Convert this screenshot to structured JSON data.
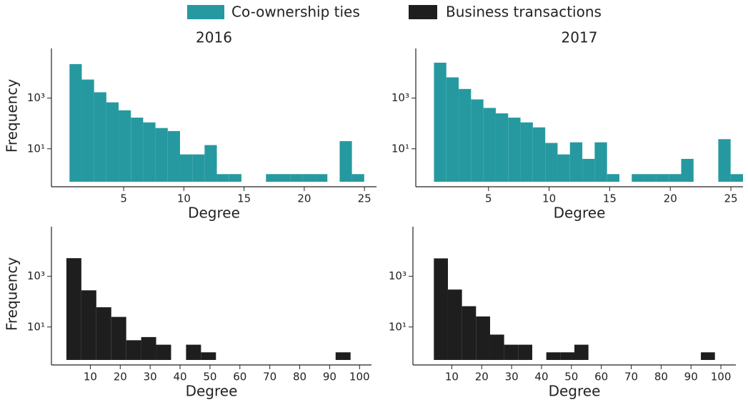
{
  "chart_data": [
    {
      "type": "histogram",
      "title": "2016",
      "xlabel": "Degree",
      "ylabel": "Frequency",
      "yscale": "log",
      "bins": [
        0.5,
        1.52,
        2.54,
        3.56,
        4.58,
        5.6,
        6.62,
        7.64,
        8.66,
        9.68,
        10.7,
        11.72,
        12.74,
        13.76,
        14.78,
        15.8,
        16.82,
        17.84,
        18.86,
        19.88,
        20.9,
        21.92,
        22.94,
        23.96,
        24.98
      ],
      "series": [
        {
          "name": "Co-ownership ties",
          "color": "#2699a0",
          "values": [
            22000,
            5400,
            1700,
            680,
            330,
            170,
            110,
            66,
            50,
            6,
            6,
            14,
            1,
            1,
            0,
            0,
            1,
            1,
            1,
            1,
            1,
            0,
            20,
            1
          ]
        }
      ],
      "xlim": [
        -1,
        26
      ],
      "xticks": [
        5,
        10,
        15,
        20,
        25
      ],
      "ylim": [
        0.5,
        80000
      ],
      "yticks": [
        {
          "value": 10,
          "label": "10¹"
        },
        {
          "value": 1000,
          "label": "10³"
        }
      ]
    },
    {
      "type": "histogram",
      "title": "2017",
      "xlabel": "Degree",
      "yscale": "log",
      "bins": [
        0.5,
        1.52,
        2.54,
        3.56,
        4.58,
        5.6,
        6.62,
        7.64,
        8.66,
        9.68,
        10.7,
        11.72,
        12.74,
        13.76,
        14.78,
        15.8,
        16.82,
        17.84,
        18.86,
        19.88,
        20.9,
        21.92,
        22.94,
        23.96,
        24.98,
        26.0
      ],
      "series": [
        {
          "name": "Co-ownership ties",
          "color": "#2699a0",
          "values": [
            25000,
            6600,
            2300,
            890,
            410,
            250,
            170,
            110,
            70,
            17,
            6,
            18,
            4,
            18,
            1,
            0,
            1,
            1,
            1,
            1,
            4,
            0,
            0,
            24,
            1
          ]
        }
      ],
      "xlim": [
        -1,
        26
      ],
      "xticks": [
        5,
        10,
        15,
        20,
        25
      ],
      "ylim": [
        0.5,
        80000
      ],
      "yticks": [
        {
          "value": 10,
          "label": "10¹"
        },
        {
          "value": 1000,
          "label": "10³"
        }
      ]
    },
    {
      "type": "histogram",
      "xlabel": "Degree",
      "ylabel": "Frequency",
      "yscale": "log",
      "bins": [
        2,
        7,
        12,
        17,
        22,
        27,
        32,
        37,
        42,
        47,
        52,
        57,
        62,
        67,
        72,
        77,
        82,
        87,
        92,
        97
      ],
      "series": [
        {
          "name": "Business transactions",
          "color": "#1e1e1e",
          "values": [
            5200,
            280,
            60,
            25,
            3,
            4,
            2,
            0,
            2,
            1,
            0,
            0,
            0,
            0,
            0,
            0,
            0,
            0,
            1
          ]
        }
      ],
      "xlim": [
        -3,
        104
      ],
      "xticks": [
        10,
        20,
        30,
        40,
        50,
        60,
        70,
        80,
        90,
        100
      ],
      "ylim": [
        0.5,
        80000
      ],
      "yticks": [
        {
          "value": 10,
          "label": "10¹"
        },
        {
          "value": 1000,
          "label": "10³"
        }
      ]
    },
    {
      "type": "histogram",
      "xlabel": "Degree",
      "yscale": "log",
      "bins": [
        4,
        8.7,
        13.4,
        18.1,
        22.8,
        27.5,
        32.2,
        36.9,
        41.6,
        46.3,
        51,
        55.7,
        60.4,
        65.1,
        69.8,
        74.5,
        79.2,
        83.9,
        88.6,
        93.3,
        98
      ],
      "series": [
        {
          "name": "Business transactions",
          "color": "#1e1e1e",
          "values": [
            5100,
            300,
            66,
            26,
            5,
            2,
            2,
            0,
            1,
            1,
            2,
            0,
            0,
            0,
            0,
            0,
            0,
            0,
            0,
            1
          ]
        }
      ],
      "xlim": [
        -3,
        105
      ],
      "xticks": [
        10,
        20,
        30,
        40,
        50,
        60,
        70,
        80,
        90,
        100
      ],
      "ylim": [
        0.5,
        80000
      ],
      "yticks": [
        {
          "value": 10,
          "label": "10¹"
        },
        {
          "value": 1000,
          "label": "10³"
        }
      ]
    }
  ]
}
